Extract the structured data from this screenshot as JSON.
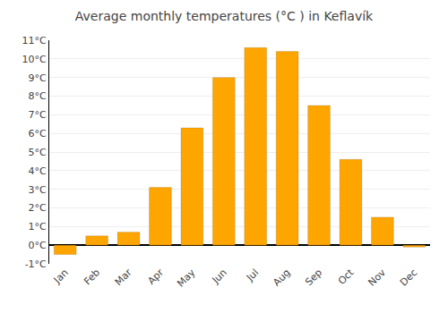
{
  "chart_data": {
    "type": "bar",
    "title": "Average monthly temperatures (°C ) in Keflavík",
    "categories": [
      "Jan",
      "Feb",
      "Mar",
      "Apr",
      "May",
      "Jun",
      "Jul",
      "Aug",
      "Sep",
      "Oct",
      "Nov",
      "Dec"
    ],
    "values": [
      -0.5,
      0.5,
      0.7,
      3.1,
      6.3,
      9.0,
      10.6,
      10.4,
      7.5,
      4.6,
      1.5,
      -0.1
    ],
    "color": "#FFA500",
    "ylim": [
      -1,
      11
    ],
    "yticks": [
      {
        "value": -1,
        "label": "-1°C"
      },
      {
        "value": 0,
        "label": "0°C"
      },
      {
        "value": 1,
        "label": "1°C"
      },
      {
        "value": 2,
        "label": "2°C"
      },
      {
        "value": 3,
        "label": "3°C"
      },
      {
        "value": 4,
        "label": "4°C"
      },
      {
        "value": 5,
        "label": "5°C"
      },
      {
        "value": 6,
        "label": "6°C"
      },
      {
        "value": 7,
        "label": "7°C"
      },
      {
        "value": 8,
        "label": "8°C"
      },
      {
        "value": 9,
        "label": "9°C"
      },
      {
        "value": 10,
        "label": "10°C"
      },
      {
        "value": 11,
        "label": "11°C"
      }
    ],
    "grid": true
  }
}
